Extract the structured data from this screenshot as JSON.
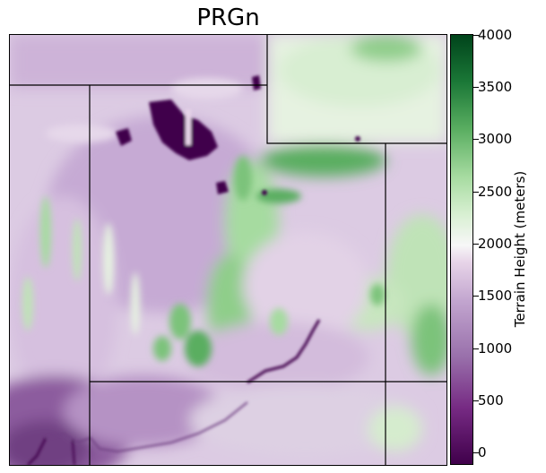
{
  "title": "PRGn",
  "map": {
    "colormap": "PRGn",
    "colors": [
      "#40004b",
      "#762a83",
      "#9970ab",
      "#c2a5cf",
      "#e7d4e8",
      "#f7f7f7",
      "#d9f0d3",
      "#a6dba0",
      "#5aae61",
      "#1b7837",
      "#00441b"
    ]
  },
  "colorbar": {
    "label": "Terrain Height (meters)",
    "min": -200,
    "max": 4000,
    "ticks": [
      "0",
      "500",
      "1000",
      "1500",
      "2000",
      "2500",
      "3000",
      "3500",
      "4000"
    ]
  }
}
